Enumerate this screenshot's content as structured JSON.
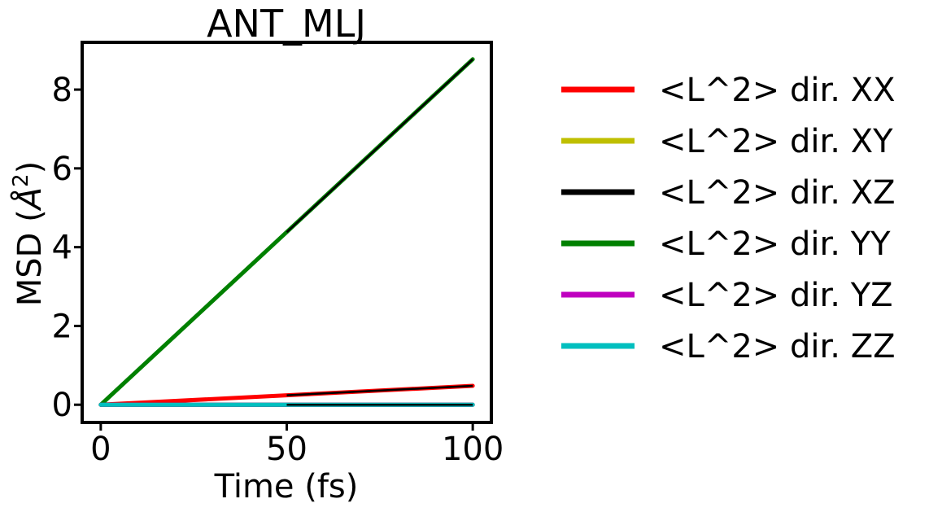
{
  "chart_data": {
    "type": "line",
    "title": "ANT_MLJ",
    "xlabel": "Time (fs)",
    "ylabel_main": "MSD (",
    "ylabel_unit": "Å",
    "ylabel_sup": "2",
    "ylabel_close": ")",
    "xlim": [
      -5,
      105
    ],
    "ylim": [
      -0.45,
      9.2
    ],
    "xticks": [
      0,
      50,
      100
    ],
    "yticks": [
      0,
      2,
      4,
      6,
      8
    ],
    "grid": false,
    "legend_position": "outside-right",
    "series": [
      {
        "name": "<L^2> dir. XX",
        "color": "#ff0000",
        "x": [
          0,
          100
        ],
        "y": [
          0.0,
          0.48
        ]
      },
      {
        "name": "<L^2> dir. XY",
        "color": "#bfbf00",
        "x": [
          0,
          100
        ],
        "y": [
          0.0,
          0.0
        ]
      },
      {
        "name": "<L^2> dir. XZ",
        "color": "#000000",
        "x": [
          0,
          100
        ],
        "y": [
          0.0,
          0.0
        ]
      },
      {
        "name": "<L^2> dir. YY",
        "color": "#008000",
        "x": [
          0,
          100
        ],
        "y": [
          0.0,
          8.77
        ]
      },
      {
        "name": "<L^2> dir. YZ",
        "color": "#bf00bf",
        "x": [
          0,
          100
        ],
        "y": [
          0.0,
          0.0
        ]
      },
      {
        "name": "<L^2> dir. ZZ",
        "color": "#00bfbf",
        "x": [
          0,
          100
        ],
        "y": [
          0.0,
          0.0
        ]
      }
    ],
    "fits": [
      {
        "color": "#000000",
        "x": [
          50,
          100
        ],
        "y": [
          0.24,
          0.48
        ]
      },
      {
        "color": "#000000",
        "x": [
          50,
          100
        ],
        "y": [
          0.0,
          0.0
        ]
      },
      {
        "color": "#000000",
        "x": [
          50,
          100
        ],
        "y": [
          4.38,
          8.77
        ]
      }
    ]
  }
}
